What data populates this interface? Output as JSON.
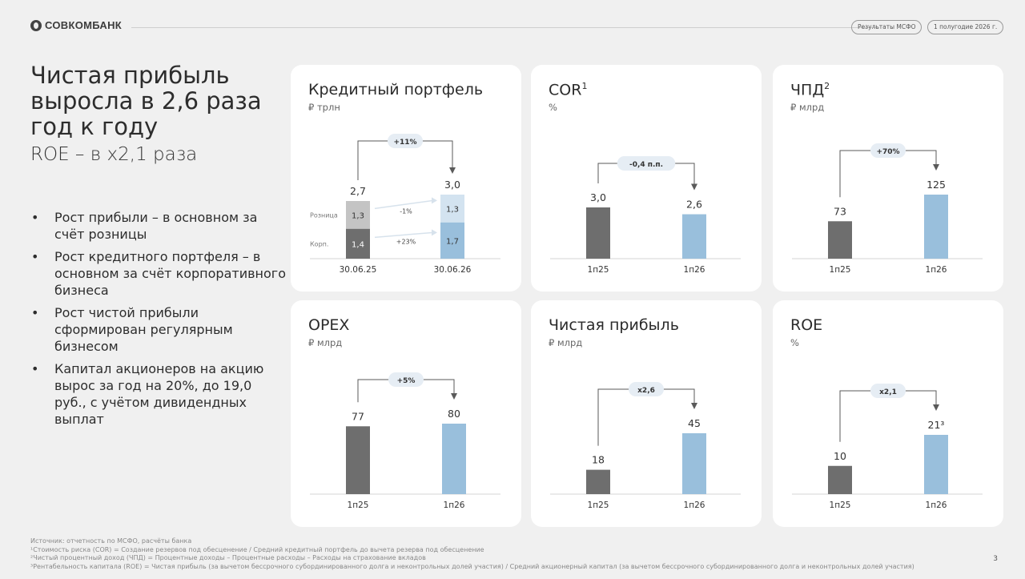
{
  "header": {
    "logo_text": "СОВКОМБАНК",
    "pill_report": "Результаты МСФО",
    "pill_period": "1 полугодие 2026 г."
  },
  "hero": {
    "title": "Чистая прибыль выросла в 2,6 раза год к году",
    "subtitle": "ROE – в х2,1 раза"
  },
  "bullets": [
    "Рост прибыли – в основном за счёт розницы",
    "Рост кредитного портфеля – в основном за счёт корпоративного бизнеса",
    "Рост чистой прибыли сформирован регулярным бизнесом",
    "Капитал акционеров на акцию вырос за год на 20%, до 19,0 руб., с учётом дивидендных выплат"
  ],
  "cards": {
    "loans": {
      "title": "Кредитный портфель",
      "unit": "₽ трлн",
      "delta": "+11%",
      "seg_labels": [
        "Розница",
        "Корп."
      ],
      "seg_deltas": [
        "-1%",
        "+23%"
      ]
    },
    "cor": {
      "title": "COR",
      "sup": "1",
      "unit": "%",
      "delta": "-0,4 п.п."
    },
    "nii": {
      "title": "ЧПД",
      "sup": "2",
      "unit": "₽ млрд",
      "delta": "+70%"
    },
    "opex": {
      "title": "OPEX",
      "sup": "",
      "unit": "₽ млрд",
      "delta": "+5%"
    },
    "profit": {
      "title": "Чистая прибыль",
      "sup": "",
      "unit": "₽ млрд",
      "delta": "х2,6"
    },
    "roe": {
      "title": "ROE",
      "sup": "",
      "unit": "%",
      "delta": "х2,1"
    }
  },
  "colors": {
    "dark_bar": "#6e6e6e",
    "light_bar": "#99bfdc",
    "pale_bar": "#d3e3f0",
    "grey_bar": "#c4c4c4",
    "pill_bg": "#e6edf4"
  },
  "chart_data": [
    {
      "type": "bar",
      "id": "loans",
      "stacked": true,
      "categories": [
        "30.06.25",
        "30.06.26"
      ],
      "totals": [
        2.7,
        3.0
      ],
      "total_labels": [
        "2,7",
        "3,0"
      ],
      "series": [
        {
          "name": "Корп.",
          "values": [
            1.4,
            1.7
          ],
          "labels": [
            "1,4",
            "1,7"
          ]
        },
        {
          "name": "Розница",
          "values": [
            1.3,
            1.3
          ],
          "labels": [
            "1,3",
            "1,3"
          ]
        }
      ]
    },
    {
      "type": "bar",
      "id": "cor",
      "categories": [
        "1п25",
        "1п26"
      ],
      "values": [
        3.0,
        2.6
      ],
      "labels": [
        "3,0",
        "2,6"
      ]
    },
    {
      "type": "bar",
      "id": "nii",
      "categories": [
        "1п25",
        "1п26"
      ],
      "values": [
        73,
        125
      ],
      "labels": [
        "73",
        "125"
      ]
    },
    {
      "type": "bar",
      "id": "opex",
      "categories": [
        "1п25",
        "1п26"
      ],
      "values": [
        77,
        80
      ],
      "labels": [
        "77",
        "80"
      ]
    },
    {
      "type": "bar",
      "id": "profit",
      "categories": [
        "1п25",
        "1п26"
      ],
      "values": [
        18,
        45
      ],
      "labels": [
        "18",
        "45"
      ]
    },
    {
      "type": "bar",
      "id": "roe",
      "categories": [
        "1п25",
        "1п26"
      ],
      "values": [
        10,
        21
      ],
      "labels": [
        "10",
        "21³"
      ]
    }
  ],
  "footnotes": [
    "Источник: отчетность по МСФО, расчёты банка",
    "¹Стоимость риска (COR) = Создание резервов под обесценение / Средний кредитный портфель до вычета резерва под обесценение",
    "²Чистый процентный доход (ЧПД) = Процентные доходы – Процентные расходы – Расходы на страхование вкладов",
    "³Рентабельность капитала (ROE) = Чистая прибыль (за вычетом бессрочного субординированного долга и неконтрольных долей участия) / Средний акционерный капитал (за вычетом бессрочного субординированного долга и неконтрольных долей участия)"
  ],
  "page_number": "3"
}
